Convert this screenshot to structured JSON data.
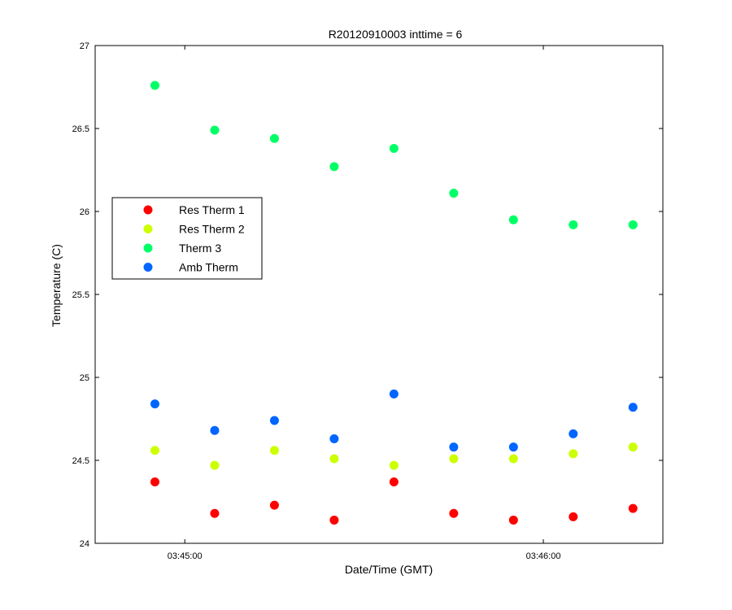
{
  "chart_data": {
    "type": "scatter",
    "title": "R20120910003 inttime = 6",
    "xlabel": "Date/Time (GMT)",
    "ylabel": "Temperature (C)",
    "x_axis_type": "time",
    "xlim": [
      "03:44:45",
      "03:46:20"
    ],
    "ylim": [
      24,
      27
    ],
    "x_ticks": [
      "03:45:00",
      "03:46:00"
    ],
    "y_ticks": [
      24,
      24.5,
      25,
      25.5,
      26,
      26.5,
      27
    ],
    "grid": false,
    "legend_position": "left",
    "x": [
      "03:44:55",
      "03:45:05",
      "03:45:15",
      "03:45:25",
      "03:45:35",
      "03:45:45",
      "03:45:55",
      "03:46:05",
      "03:46:15"
    ],
    "series": [
      {
        "name": "Res Therm 1",
        "color": "#ff0000",
        "values": [
          24.37,
          24.18,
          24.23,
          24.14,
          24.37,
          24.18,
          24.14,
          24.16,
          24.21
        ]
      },
      {
        "name": "Res Therm 2",
        "color": "#ccff00",
        "values": [
          24.56,
          24.47,
          24.56,
          24.51,
          24.47,
          24.51,
          24.51,
          24.54,
          24.58
        ]
      },
      {
        "name": "Therm 3",
        "color": "#00ff66",
        "values": [
          26.76,
          26.49,
          26.44,
          26.27,
          26.38,
          26.11,
          25.95,
          25.92,
          25.92
        ]
      },
      {
        "name": "Amb Therm",
        "color": "#0066ff",
        "values": [
          24.84,
          24.68,
          24.74,
          24.63,
          24.9,
          24.58,
          24.58,
          24.66,
          24.82
        ]
      }
    ]
  }
}
